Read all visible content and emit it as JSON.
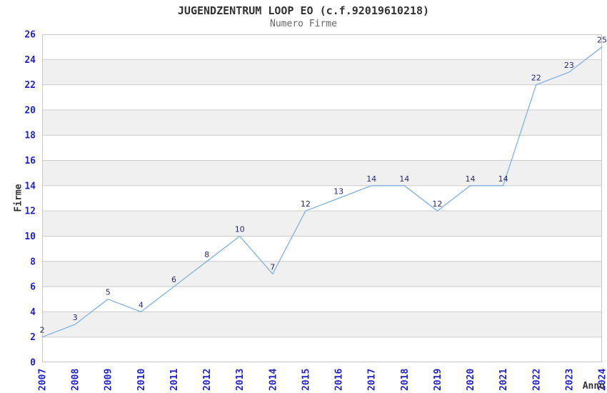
{
  "chart_data": {
    "type": "line",
    "title": "JUGENDZENTRUM LOOP EO (c.f.92019610218)",
    "subtitle": "Numero Firme",
    "xlabel": "Anno",
    "ylabel": "Firme",
    "x": [
      "2007",
      "2008",
      "2009",
      "2010",
      "2011",
      "2012",
      "2013",
      "2014",
      "2015",
      "2016",
      "2017",
      "2018",
      "2019",
      "2020",
      "2021",
      "2022",
      "2023",
      "2024"
    ],
    "values": [
      2,
      3,
      5,
      4,
      6,
      8,
      10,
      7,
      12,
      13,
      14,
      14,
      12,
      14,
      14,
      22,
      23,
      25
    ],
    "ylim": [
      0,
      26
    ],
    "ytick_step": 2,
    "grid": true,
    "legend_position": "none",
    "point_labels_visible": true,
    "colors": {
      "line": "#7FB2E5",
      "tick_label": "#2222CC",
      "value_label": "#26267A",
      "grid_line": "#CCCCCC",
      "band": "#F0F0F0",
      "plot_border": "#C8C8C8",
      "title": "#333333",
      "subtitle": "#666666",
      "axis_title": "#333333",
      "background": "#FFFFFF"
    }
  }
}
